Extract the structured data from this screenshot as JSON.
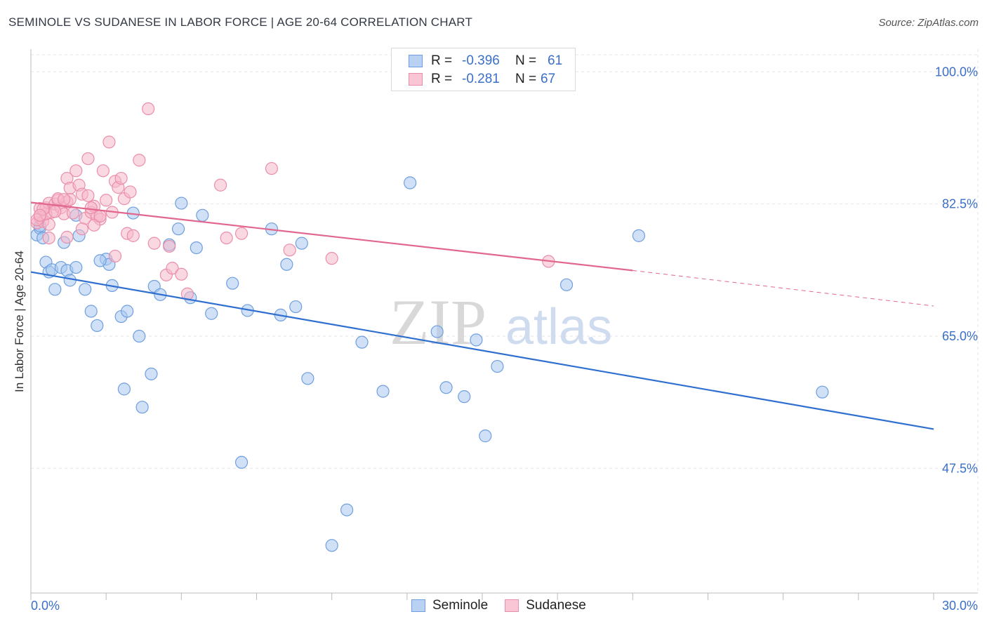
{
  "title": "SEMINOLE VS SUDANESE IN LABOR FORCE | AGE 20-64 CORRELATION CHART",
  "source": "Source: ZipAtlas.com",
  "legend": {
    "rows": [
      {
        "r_label": "R =",
        "r_value": "-0.396",
        "n_label": "N =",
        "n_value": "61"
      },
      {
        "r_label": "R =",
        "r_value": "-0.281",
        "n_label": "N =",
        "n_value": "67"
      }
    ]
  },
  "chart_data": {
    "type": "scatter",
    "ylabel": "In Labor Force | Age 20-64",
    "xlim": [
      0,
      30
    ],
    "ylim": [
      31,
      103
    ],
    "x_tick_labels": [
      {
        "x": 0,
        "label": "0.0%"
      },
      {
        "x": 30,
        "label": "30.0%"
      }
    ],
    "y_ticks": [
      {
        "y": 100,
        "label": "100.0%"
      },
      {
        "y": 82.5,
        "label": "82.5%"
      },
      {
        "y": 65,
        "label": "65.0%"
      },
      {
        "y": 47.5,
        "label": "47.5%"
      }
    ],
    "colors": {
      "seminole_fill": "#a9c8f0",
      "seminole_stroke": "#6f9fde",
      "seminole_line": "#2f6fd0",
      "sudanese_fill": "#f5b8cb",
      "sudanese_stroke": "#ea8eaa",
      "sudanese_line": "#e2678f",
      "tick_text": "#3a6fc8",
      "grid": "#e5e5e5"
    },
    "series": [
      {
        "name": "Seminole",
        "points": [
          [
            0.2,
            78.4
          ],
          [
            0.3,
            79.3
          ],
          [
            0.4,
            78.0
          ],
          [
            0.5,
            74.8
          ],
          [
            0.6,
            73.5
          ],
          [
            0.7,
            73.8
          ],
          [
            0.8,
            71.2
          ],
          [
            1.0,
            74.1
          ],
          [
            1.1,
            77.4
          ],
          [
            1.2,
            73.7
          ],
          [
            1.3,
            72.4
          ],
          [
            1.5,
            81.0
          ],
          [
            1.6,
            78.3
          ],
          [
            1.8,
            71.2
          ],
          [
            2.0,
            68.3
          ],
          [
            2.2,
            66.4
          ],
          [
            2.5,
            75.2
          ],
          [
            2.6,
            74.5
          ],
          [
            2.7,
            71.7
          ],
          [
            3.0,
            67.6
          ],
          [
            3.1,
            58.0
          ],
          [
            3.2,
            68.3
          ],
          [
            3.4,
            81.3
          ],
          [
            3.6,
            65.0
          ],
          [
            4.0,
            60.0
          ],
          [
            4.1,
            71.6
          ],
          [
            4.3,
            70.5
          ],
          [
            4.6,
            77.1
          ],
          [
            4.9,
            79.2
          ],
          [
            5.0,
            82.6
          ],
          [
            5.3,
            70.1
          ],
          [
            5.5,
            76.7
          ],
          [
            5.7,
            81.0
          ],
          [
            6.0,
            68.0
          ],
          [
            6.7,
            72.0
          ],
          [
            7.0,
            48.3
          ],
          [
            7.2,
            68.4
          ],
          [
            8.0,
            79.2
          ],
          [
            8.3,
            67.8
          ],
          [
            8.5,
            74.5
          ],
          [
            8.8,
            68.9
          ],
          [
            9.0,
            77.3
          ],
          [
            9.2,
            59.4
          ],
          [
            10.0,
            37.3
          ],
          [
            10.5,
            42.0
          ],
          [
            11.0,
            64.2
          ],
          [
            11.7,
            57.7
          ],
          [
            12.6,
            85.3
          ],
          [
            13.5,
            65.6
          ],
          [
            13.8,
            58.2
          ],
          [
            14.8,
            64.5
          ],
          [
            14.4,
            57.0
          ],
          [
            15.1,
            51.8
          ],
          [
            15.5,
            61.0
          ],
          [
            17.8,
            71.8
          ],
          [
            20.2,
            78.3
          ],
          [
            26.3,
            57.6
          ],
          [
            0.3,
            79.6
          ],
          [
            1.5,
            74.1
          ],
          [
            2.3,
            75.0
          ],
          [
            3.7,
            55.6
          ]
        ]
      },
      {
        "name": "Sudanese",
        "points": [
          [
            0.2,
            80.0
          ],
          [
            0.3,
            80.7
          ],
          [
            0.3,
            81.9
          ],
          [
            0.4,
            80.2
          ],
          [
            0.5,
            82.0
          ],
          [
            0.6,
            82.6
          ],
          [
            0.6,
            79.8
          ],
          [
            0.7,
            81.4
          ],
          [
            0.8,
            82.5
          ],
          [
            0.9,
            83.0
          ],
          [
            1.0,
            82.0
          ],
          [
            1.1,
            81.2
          ],
          [
            1.2,
            82.8
          ],
          [
            1.2,
            85.9
          ],
          [
            1.3,
            84.6
          ],
          [
            1.4,
            81.3
          ],
          [
            1.5,
            86.9
          ],
          [
            1.6,
            85.0
          ],
          [
            1.7,
            83.8
          ],
          [
            1.8,
            80.6
          ],
          [
            1.9,
            88.5
          ],
          [
            2.0,
            81.4
          ],
          [
            2.1,
            82.2
          ],
          [
            2.2,
            80.9
          ],
          [
            2.3,
            80.5
          ],
          [
            2.4,
            86.9
          ],
          [
            2.5,
            83.0
          ],
          [
            2.6,
            90.7
          ],
          [
            2.7,
            81.4
          ],
          [
            2.8,
            85.5
          ],
          [
            2.9,
            84.7
          ],
          [
            3.0,
            85.9
          ],
          [
            3.1,
            83.2
          ],
          [
            3.2,
            78.6
          ],
          [
            3.3,
            84.1
          ],
          [
            3.4,
            78.3
          ],
          [
            3.6,
            88.3
          ],
          [
            3.9,
            95.1
          ],
          [
            4.5,
            73.1
          ],
          [
            4.6,
            76.9
          ],
          [
            4.7,
            74.0
          ],
          [
            5.0,
            73.2
          ],
          [
            5.2,
            70.6
          ],
          [
            6.3,
            85.0
          ],
          [
            6.5,
            78.0
          ],
          [
            7.0,
            78.6
          ],
          [
            8.0,
            87.2
          ],
          [
            8.6,
            76.4
          ],
          [
            10.0,
            75.3
          ],
          [
            17.2,
            74.9
          ],
          [
            0.6,
            78.0
          ],
          [
            1.2,
            78.1
          ],
          [
            0.2,
            80.4
          ],
          [
            0.5,
            81.2
          ],
          [
            0.9,
            83.2
          ],
          [
            1.3,
            83.1
          ],
          [
            1.7,
            79.2
          ],
          [
            2.0,
            82.0
          ],
          [
            2.1,
            79.7
          ],
          [
            2.3,
            80.9
          ],
          [
            0.4,
            81.8
          ],
          [
            0.8,
            81.5
          ],
          [
            1.1,
            83.1
          ],
          [
            1.9,
            83.6
          ],
          [
            0.3,
            81.0
          ],
          [
            2.8,
            75.6
          ],
          [
            4.1,
            77.3
          ]
        ]
      }
    ],
    "trend_lines": [
      {
        "name": "Seminole",
        "x_start": 0,
        "y_start": 73.5,
        "x_end": 30,
        "y_end": 52.7,
        "style": "solid"
      },
      {
        "name": "Sudanese",
        "x_start": 0,
        "y_start": 82.7,
        "x_end": 20.0,
        "y_end": 73.7,
        "style": "solid"
      },
      {
        "name": "Sudanese",
        "x_start": 20.0,
        "y_start": 73.7,
        "x_end": 30,
        "y_end": 69.0,
        "style": "dashed"
      }
    ]
  },
  "bottom_legend": {
    "items": [
      "Seminole",
      "Sudanese"
    ]
  },
  "watermark": {
    "part1": "ZIP",
    "part2": "atlas"
  }
}
